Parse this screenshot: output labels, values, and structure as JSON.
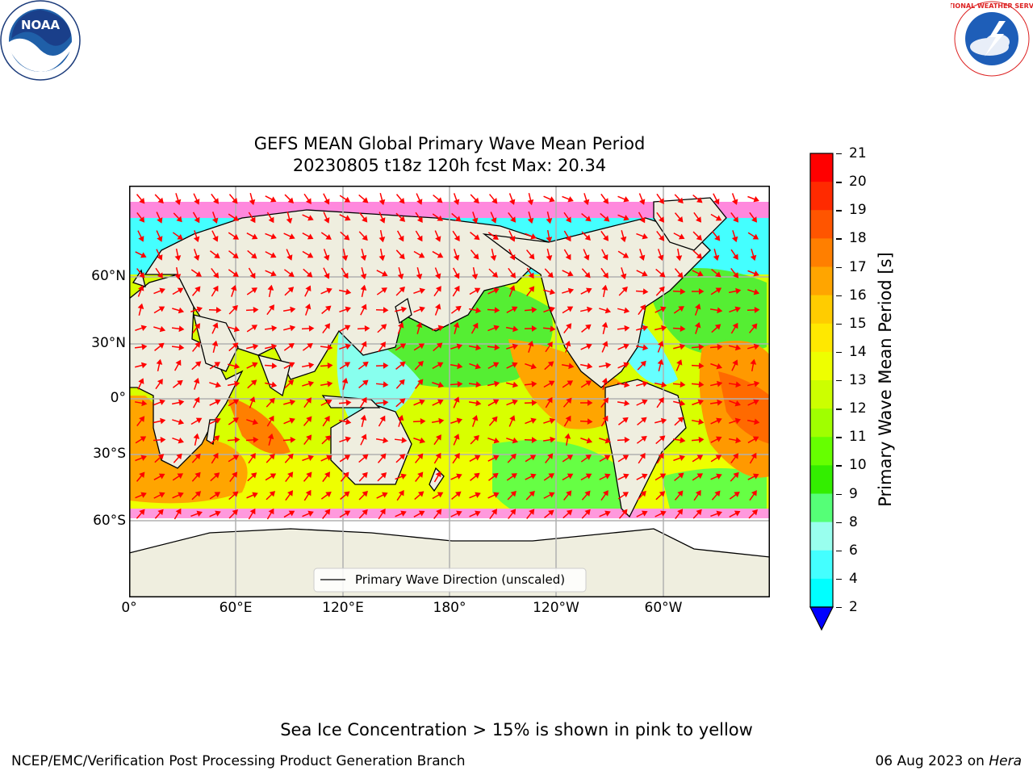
{
  "title_line1": "GEFS MEAN Global Primary Wave Mean Period",
  "title_line2": "20230805 t18z 120h fcst   Max: 20.34",
  "lat_ticks": [
    "60°N",
    "30°N",
    "0°",
    "30°S",
    "60°S"
  ],
  "lon_ticks": [
    "0°",
    "60°E",
    "120°E",
    "180°",
    "120°W",
    "60°W"
  ],
  "legend_label": "Primary Wave Direction (unscaled)",
  "colorbar": {
    "label": "Primary Wave Mean Period [s]",
    "ticks": [
      "21",
      "20",
      "19",
      "18",
      "17",
      "16",
      "15",
      "14",
      "13",
      "12",
      "11",
      "10",
      "9",
      "8",
      "6",
      "4",
      "2"
    ],
    "colors": [
      "#ff0000",
      "#ff2a00",
      "#ff5500",
      "#ff7f00",
      "#ffa500",
      "#ffcc00",
      "#ffe800",
      "#eeff00",
      "#ccff00",
      "#a0ff00",
      "#66ff00",
      "#33ee00",
      "#55ff77",
      "#99ffee",
      "#44ffff",
      "#00ffff",
      "#00ccff",
      "#0077ff"
    ],
    "extend_color": "#0000ff"
  },
  "note": "Sea Ice Concentration > 15% is shown in pink to yellow",
  "footer_left": "NCEP/EMC/Verification Post Processing Product Generation Branch",
  "footer_date": "06 Aug 2023 on ",
  "footer_machine": "Hera",
  "logos": {
    "noaa": "NOAA",
    "nws": "NATIONAL WEATHER SERVICE"
  },
  "map_data": {
    "type": "filled-contour-vector-map",
    "variable": "Primary Wave Mean Period",
    "units": "s",
    "max_value": 20.34,
    "lon_range": [
      0,
      360
    ],
    "lat_range": [
      -90,
      90
    ],
    "grid": true
  }
}
